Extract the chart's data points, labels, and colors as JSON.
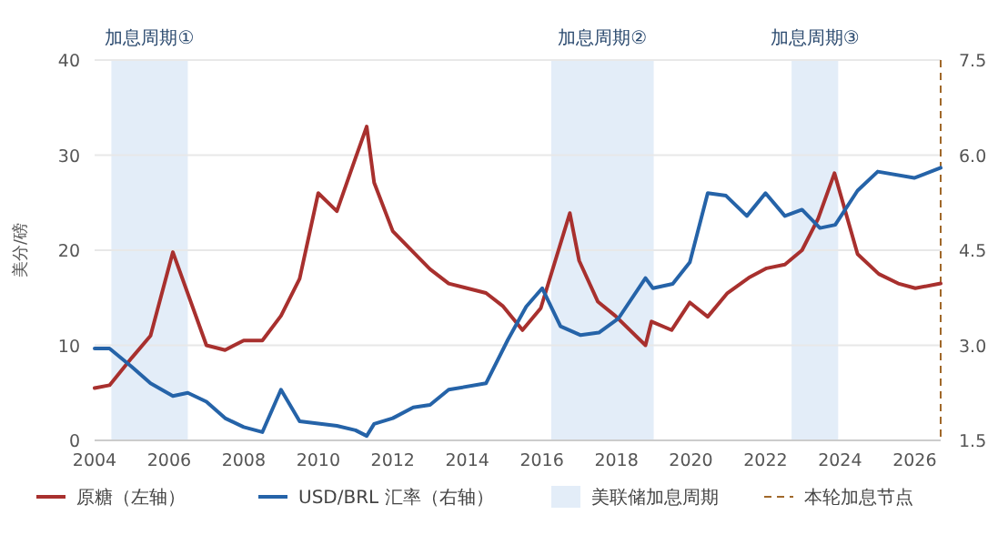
{
  "chart_data": {
    "type": "line",
    "ylabel": "美分/磅",
    "xlim": [
      2004,
      2026.7
    ],
    "xticks": [
      2004,
      2006,
      2008,
      2010,
      2012,
      2014,
      2016,
      2018,
      2020,
      2022,
      2024,
      2026
    ],
    "ylim": [
      0,
      40
    ],
    "yticks": [
      0,
      10,
      20,
      30,
      40
    ],
    "y2lim": [
      1.5,
      7.5
    ],
    "y2ticks": [
      {
        "value": 1.5,
        "label": "1.5"
      },
      {
        "value": 3,
        "label": "3.0"
      },
      {
        "value": 4.5,
        "label": "4.5"
      },
      {
        "value": 6,
        "label": "6.0"
      },
      {
        "value": 7.5,
        "label": "7.5"
      }
    ],
    "grid": "y",
    "legend": "bottom",
    "line_style": "solid",
    "marker": "none",
    "series": [
      {
        "name": "原糖（左轴）",
        "color": "#a8302e",
        "x": [
          2004,
          2004.4,
          2005,
          2005.5,
          2006.1,
          2007,
          2007.5,
          2008,
          2008.5,
          2009,
          2009.5,
          2010,
          2010.5,
          2011,
          2011.3,
          2011.5,
          2012,
          2012.55,
          2013,
          2013.5,
          2014.5,
          2014.96,
          2015.48,
          2015.97,
          2016.75,
          2017,
          2017.5,
          2017.97,
          2018.78,
          2018.94,
          2019.48,
          2019.97,
          2020.45,
          2020.98,
          2021.55,
          2022.03,
          2022.52,
          2022.98,
          2023.41,
          2023.85,
          2024.47,
          2025.04,
          2025.56,
          2026.02,
          2026.7
        ],
        "values": [
          5.5,
          5.8,
          8.7,
          11,
          19.8,
          10,
          9.5,
          10.5,
          10.5,
          13.1,
          17,
          26,
          24.1,
          29.7,
          33,
          27.1,
          22,
          19.8,
          18,
          16.5,
          15.5,
          14.1,
          11.6,
          13.9,
          23.9,
          18.9,
          14.6,
          13.1,
          10,
          12.5,
          11.6,
          14.5,
          13,
          15.5,
          17.1,
          18.1,
          18.5,
          20,
          23.3,
          28.1,
          19.6,
          17.5,
          16.5,
          16,
          16.5
        ]
      },
      {
        "name": "USD/BRL 汇率（右轴）",
        "color": "#2563a8",
        "axis": "y2",
        "x": [
          2004,
          2004.4,
          2005,
          2005.5,
          2006.1,
          2006.5,
          2007,
          2007.5,
          2008,
          2008.5,
          2009,
          2009.5,
          2010.5,
          2011,
          2011.3,
          2011.5,
          2012,
          2012.55,
          2013,
          2013.5,
          2014.5,
          2015.09,
          2015.58,
          2016.01,
          2016.5,
          2017.04,
          2017.53,
          2018.05,
          2018.78,
          2018.98,
          2019.51,
          2019.97,
          2020.45,
          2020.94,
          2021.5,
          2022,
          2022.52,
          2022.98,
          2023.46,
          2023.87,
          2024.47,
          2025.01,
          2025.99,
          2026.7
        ],
        "values": [
          2.95,
          2.95,
          2.66,
          2.4,
          2.2,
          2.25,
          2.11,
          1.85,
          1.71,
          1.63,
          2.3,
          1.8,
          1.73,
          1.66,
          1.57,
          1.76,
          1.85,
          2.02,
          2.06,
          2.3,
          2.4,
          3.09,
          3.61,
          3.9,
          3.3,
          3.16,
          3.2,
          3.42,
          4.06,
          3.9,
          3.97,
          4.31,
          5.4,
          5.36,
          5.04,
          5.4,
          5.04,
          5.14,
          4.85,
          4.9,
          5.44,
          5.74,
          5.64,
          5.8
        ]
      }
    ],
    "bands": [
      {
        "axis": "x",
        "from": 2004.45,
        "to": 2006.5,
        "label": "加息周期①",
        "color": "#e3edf8"
      },
      {
        "axis": "x",
        "from": 2016.25,
        "to": 2019.0,
        "label": "加息周期②",
        "color": "#e3edf8"
      },
      {
        "axis": "x",
        "from": 2022.7,
        "to": 2023.95,
        "label": "加息周期③",
        "color": "#e3edf8"
      }
    ],
    "ref_lines": [
      {
        "axis": "x",
        "value": 2026.7,
        "label": "本轮加息节点",
        "color": "#a0682a",
        "line_style": "dashed"
      }
    ],
    "annotations": [
      "美联储加息周期"
    ]
  }
}
